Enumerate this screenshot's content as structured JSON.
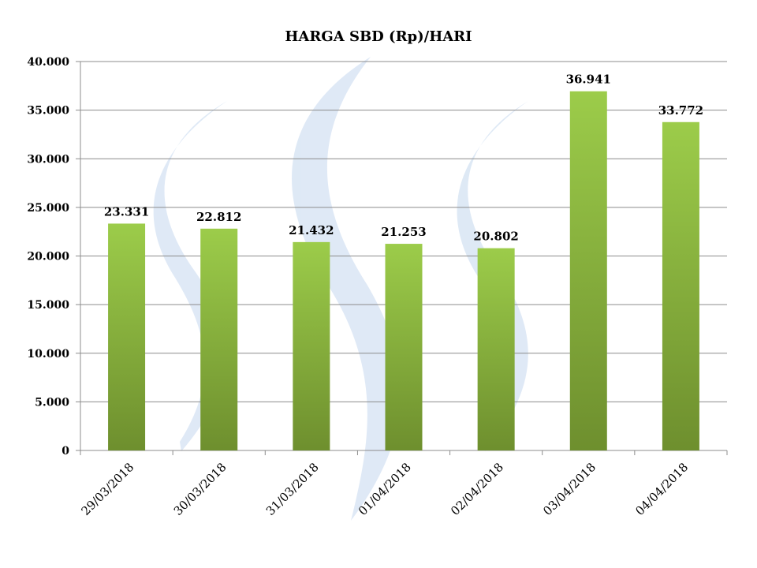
{
  "chart_data": {
    "type": "bar",
    "title": "HARGA SBD (Rp)/HARI",
    "xlabel": "",
    "ylabel": "",
    "categories": [
      "29/03/2018",
      "30/03/2018",
      "31/03/2018",
      "01/04/2018",
      "02/04/2018",
      "03/04/2018",
      "04/04/2018"
    ],
    "values": [
      23331,
      22812,
      21432,
      21253,
      20802,
      36941,
      33772
    ],
    "value_labels": [
      "23.331",
      "22.812",
      "21.432",
      "21.253",
      "20.802",
      "36.941",
      "33.772"
    ],
    "ylim": [
      0,
      40000
    ],
    "yticks": [
      0,
      5000,
      10000,
      15000,
      20000,
      25000,
      30000,
      35000,
      40000
    ],
    "ytick_labels": [
      "0",
      "5.000",
      "10.000",
      "15.000",
      "20.000",
      "25.000",
      "30.000",
      "35.000",
      "40.000"
    ],
    "grid": true,
    "legend": "none",
    "colors": {
      "bar_top": "#9ccc4a",
      "bar_bottom": "#6e8f2e",
      "grid": "#8c8c8c",
      "watermark": "#dbe7f5"
    }
  }
}
